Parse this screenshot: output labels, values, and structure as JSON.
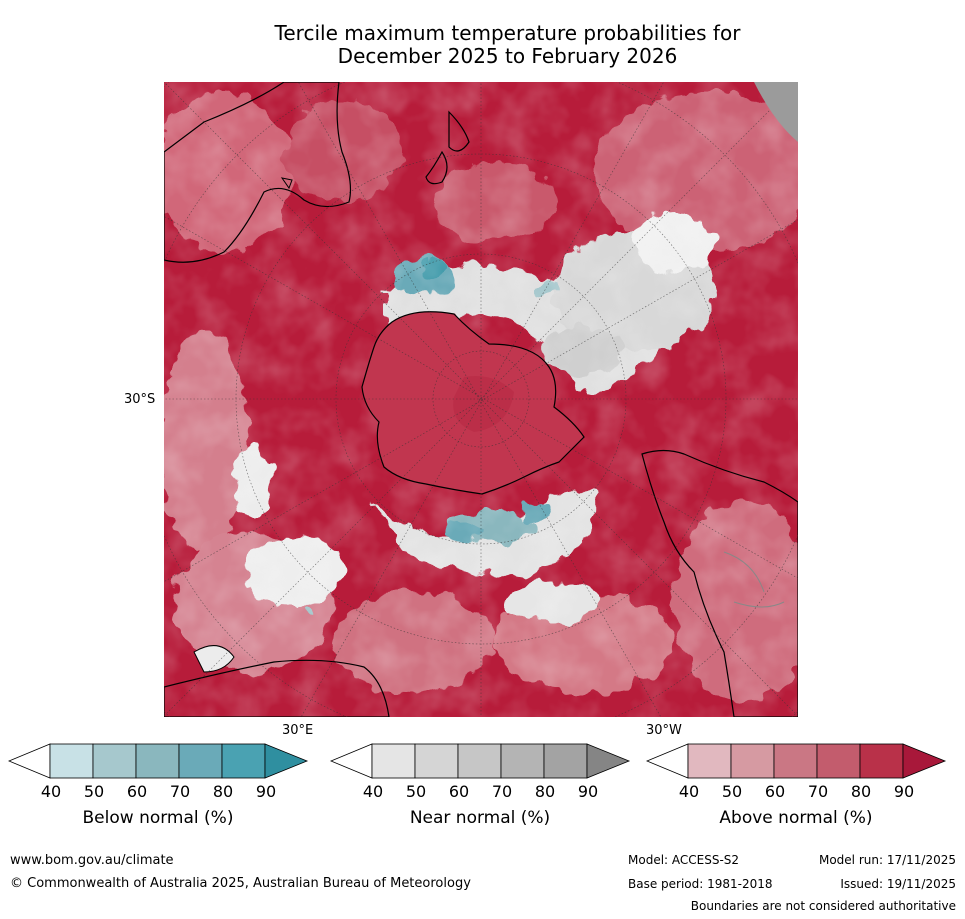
{
  "title": {
    "line1": "Tercile maximum temperature probabilities for",
    "line2": "December 2025 to February 2026"
  },
  "map": {
    "projection": "south-polar",
    "latitude_label": "30°S",
    "longitude_labels": [
      "30°E",
      "30°W"
    ],
    "colors": {
      "ocean_dominant": "#b71c3a",
      "land_outline": "#000000",
      "near_normal": "#dcdcdc",
      "below_normal": "#4aa2b2"
    }
  },
  "legend": [
    {
      "title": "Below normal (%)",
      "ticks": [
        "40",
        "50",
        "60",
        "70",
        "80",
        "90"
      ],
      "colors": [
        "#ffffff",
        "#c8e1e6",
        "#a6c8cd",
        "#8ab7be",
        "#6aaab8",
        "#4aa2b2",
        "#2f8fa0"
      ]
    },
    {
      "title": "Near normal (%)",
      "ticks": [
        "40",
        "50",
        "60",
        "70",
        "80",
        "90"
      ],
      "colors": [
        "#ffffff",
        "#e5e5e5",
        "#d5d5d5",
        "#c6c6c6",
        "#b4b4b4",
        "#a3a3a3",
        "#858585"
      ]
    },
    {
      "title": "Above normal (%)",
      "ticks": [
        "40",
        "50",
        "60",
        "70",
        "80",
        "90"
      ],
      "colors": [
        "#ffffff",
        "#e1b8bf",
        "#d69aa2",
        "#ca7784",
        "#c35c6d",
        "#b93149",
        "#a8183a"
      ]
    }
  ],
  "footer": {
    "url": "www.bom.gov.au/climate",
    "copyright": "© Commonwealth of Australia 2025, Australian Bureau of Meteorology",
    "model": "Model: ACCESS-S2",
    "base_period": "Base period: 1981-2018",
    "model_run": "Model run: 17/11/2025",
    "issued": "Issued: 19/11/2025",
    "disclaimer": "Boundaries are not considered authoritative"
  }
}
